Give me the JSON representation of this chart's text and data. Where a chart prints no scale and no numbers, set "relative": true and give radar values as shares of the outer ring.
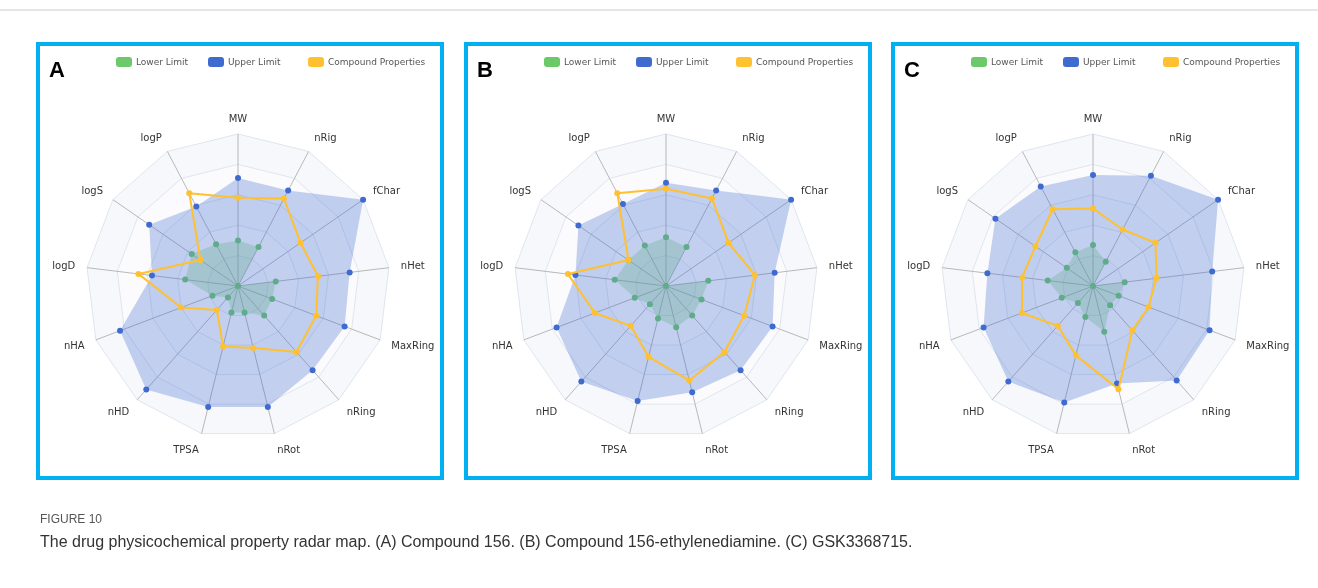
{
  "chart_data": [
    {
      "type": "radar",
      "title": "A",
      "relative": true,
      "grid": true,
      "legend": "top",
      "marker": "circle",
      "categories": [
        "MW",
        "nRig",
        "fChar",
        "nHet",
        "MaxRing",
        "nRing",
        "nRot",
        "TPSA",
        "nHD",
        "nHA",
        "logD",
        "logS",
        "logP"
      ],
      "series": [
        {
          "name": "Lower Limit",
          "color": "#6cc96a",
          "values": [
            0.3,
            0.29,
            0,
            0.25,
            0.24,
            0.26,
            0.18,
            0.18,
            0.1,
            0.18,
            0.35,
            0.37,
            0.31
          ]
        },
        {
          "name": "Upper Limit",
          "color": "#3f6bd0",
          "values": [
            0.71,
            0.71,
            1,
            0.74,
            0.75,
            0.74,
            0.82,
            0.82,
            0.91,
            0.83,
            0.57,
            0.71,
            0.59
          ]
        },
        {
          "name": "Compound Properties",
          "color": "#ffc12f",
          "values": [
            0.58,
            0.65,
            0.5,
            0.53,
            0.55,
            0.58,
            0.42,
            0.41,
            0.21,
            0.4,
            0.66,
            0.3,
            0.69
          ]
        }
      ],
      "annotations": [
        "FIGURE 10",
        "The drug physicochemical property radar map. (A) Compound 156. (B) Compound 156-ethylenediamine. (C) GSK3368715."
      ]
    },
    {
      "type": "radar",
      "title": "B",
      "relative": true,
      "grid": true,
      "legend": "top",
      "marker": "circle",
      "categories": [
        "MW",
        "nRig",
        "fChar",
        "nHet",
        "MaxRing",
        "nRing",
        "nRot",
        "TPSA",
        "nHD",
        "nHA",
        "logD",
        "logS",
        "logP"
      ],
      "series": [
        {
          "name": "Lower Limit",
          "color": "#6cc96a",
          "values": [
            0.32,
            0.29,
            0,
            0.28,
            0.25,
            0.26,
            0.28,
            0.22,
            0.16,
            0.22,
            0.34,
            0.3,
            0.3
          ]
        },
        {
          "name": "Upper Limit",
          "color": "#3f6bd0",
          "values": [
            0.68,
            0.71,
            1,
            0.72,
            0.75,
            0.74,
            0.72,
            0.78,
            0.84,
            0.77,
            0.6,
            0.7,
            0.61
          ]
        },
        {
          "name": "Compound Properties",
          "color": "#ffc12f",
          "values": [
            0.64,
            0.65,
            0.5,
            0.59,
            0.55,
            0.58,
            0.64,
            0.48,
            0.35,
            0.5,
            0.65,
            0.3,
            0.69
          ]
        }
      ]
    },
    {
      "type": "radar",
      "title": "C",
      "relative": true,
      "grid": true,
      "legend": "top",
      "marker": "circle",
      "categories": [
        "MW",
        "nRig",
        "fChar",
        "nHet",
        "MaxRing",
        "nRing",
        "nRot",
        "TPSA",
        "nHD",
        "nHA",
        "logD",
        "logS",
        "logP"
      ],
      "series": [
        {
          "name": "Lower Limit",
          "color": "#6cc96a",
          "values": [
            0.27,
            0.18,
            0,
            0.21,
            0.18,
            0.17,
            0.31,
            0.21,
            0.15,
            0.22,
            0.3,
            0.21,
            0.25
          ]
        },
        {
          "name": "Upper Limit",
          "color": "#3f6bd0",
          "values": [
            0.73,
            0.82,
            1,
            0.79,
            0.82,
            0.83,
            0.66,
            0.79,
            0.84,
            0.77,
            0.7,
            0.78,
            0.74
          ]
        },
        {
          "name": "Compound Properties",
          "color": "#ffc12f",
          "values": [
            0.51,
            0.42,
            0.5,
            0.42,
            0.39,
            0.39,
            0.7,
            0.47,
            0.35,
            0.5,
            0.47,
            0.46,
            0.57
          ]
        }
      ]
    }
  ]
}
